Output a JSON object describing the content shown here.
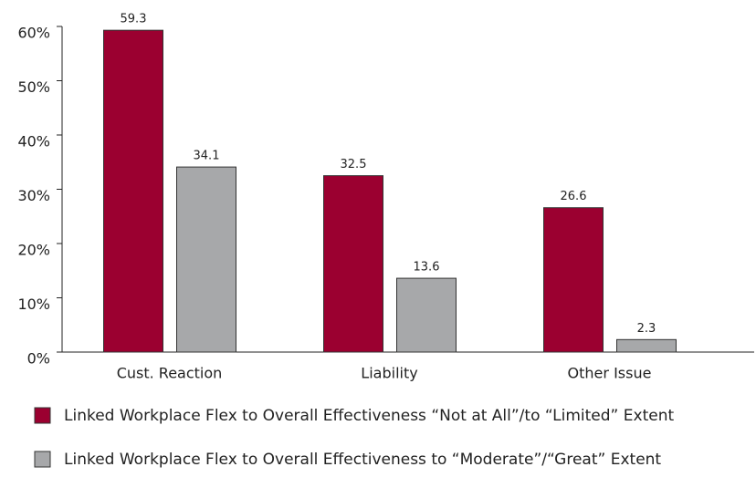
{
  "chart_data": {
    "type": "bar",
    "categories": [
      "Cust. Reaction",
      "Liability",
      "Other Issue"
    ],
    "series": [
      {
        "name": "Linked Workplace Flex to Overall Effectiveness “Not at All”/to “Limited” Extent",
        "color": "#9b0030",
        "values": [
          59.3,
          32.5,
          26.6
        ]
      },
      {
        "name": "Linked Workplace Flex to Overall Effectiveness to “Moderate”/“Great” Extent",
        "color": "#a7a8aa",
        "values": [
          34.1,
          13.6,
          2.3
        ]
      }
    ],
    "ylim": [
      0,
      60
    ],
    "yticks": [
      {
        "value": 0,
        "label": "0%"
      },
      {
        "value": 10,
        "label": "10%"
      },
      {
        "value": 20,
        "label": "20%"
      },
      {
        "value": 30,
        "label": "30%"
      },
      {
        "value": 40,
        "label": "40%"
      },
      {
        "value": 50,
        "label": "50%"
      },
      {
        "value": 60,
        "label": "60%"
      }
    ],
    "grid": false
  }
}
